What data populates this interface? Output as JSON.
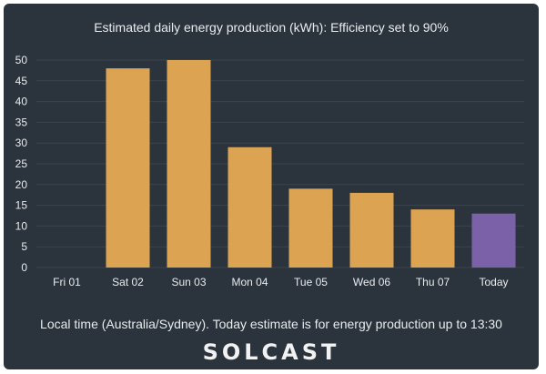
{
  "chart_data": {
    "type": "bar",
    "title": "Estimated daily energy production (kWh): Efficiency set to 90%",
    "xlabel": "",
    "ylabel": "",
    "categories": [
      "Fri 01",
      "Sat 02",
      "Sun 03",
      "Mon 04",
      "Tue 05",
      "Wed 06",
      "Thu 07",
      "Today"
    ],
    "values": [
      0,
      48,
      50,
      29,
      19,
      18,
      14,
      13
    ],
    "ylim": [
      0,
      50
    ],
    "yticks": [
      0,
      5,
      10,
      15,
      20,
      25,
      30,
      35,
      40,
      45,
      50
    ],
    "grid": true,
    "colors": {
      "bar": "#dca352",
      "today_bar": "#7b62a8",
      "background": "#2b343c",
      "gridline": "#3b454e",
      "text": "#e8ecef"
    }
  },
  "footer": {
    "note": "Local time (Australia/Sydney). Today estimate is for energy production up to 13:30",
    "logo": "SOLCAST"
  }
}
